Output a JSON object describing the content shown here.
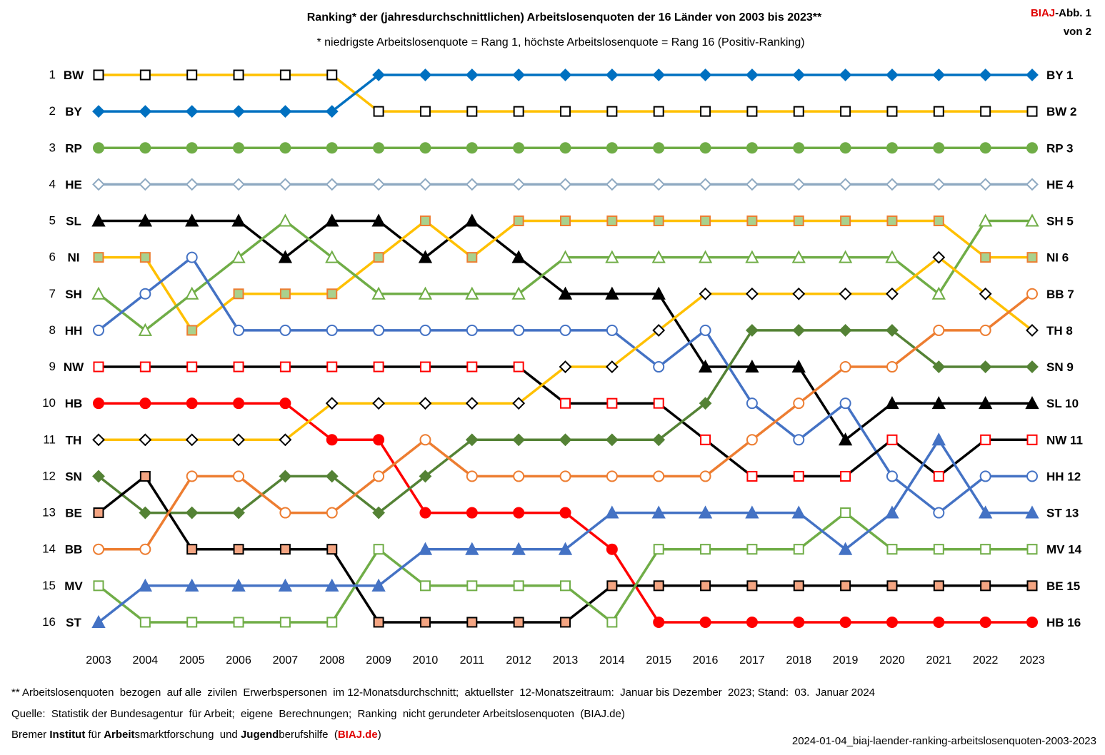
{
  "header": {
    "title": "Ranking* der (jahresdurchschnittlichen) Arbeitslosenquoten der 16 Länder von 2003 bis 2023**",
    "subtitle": "* niedrigste Arbeitslosenquote = Rang 1, höchste Arbeitslosenquote = Rang 16 (Positiv-Ranking)",
    "badge_brand": "BIAJ",
    "badge_rest": "-Abb. 1",
    "badge_line2": "von 2"
  },
  "footer": {
    "note": "** Arbeitslosenquoten  bezogen  auf alle  zivilen  Erwerbspersonen  im 12-Monatsdurchschnitt;  aktuellster  12-Monatszeitraum:  Januar bis Dezember  2023; Stand:  03.  Januar 2024",
    "source": "Quelle:  Statistik der Bundesagentur  für Arbeit;  eigene  Berechnungen;  Ranking  nicht gerundeter Arbeitslosenquoten  (BIAJ.de)",
    "org_parts": [
      "Bremer ",
      "Institut",
      " für ",
      "Arbeit",
      "smarktforschung  und ",
      "Jugend",
      "berufshilfe  ("
    ],
    "org_link": "BIAJ.de",
    "org_close": ")",
    "filename": "2024-01-04_biaj-laender-ranking-arbeitslosenquoten-2003-2023"
  },
  "chart_data": {
    "type": "line",
    "x": [
      2003,
      2004,
      2005,
      2006,
      2007,
      2008,
      2009,
      2010,
      2011,
      2012,
      2013,
      2014,
      2015,
      2016,
      2017,
      2018,
      2019,
      2020,
      2021,
      2022,
      2023
    ],
    "ylim": [
      1,
      16
    ],
    "y_inverted": true,
    "grid": false,
    "legend": "row labels on left and right",
    "series": [
      {
        "name": "BW",
        "color": "#FFC000",
        "marker": "square",
        "marker_fill": "#ffffff",
        "marker_stroke": "#000000",
        "values": [
          1,
          1,
          1,
          1,
          1,
          1,
          2,
          2,
          2,
          2,
          2,
          2,
          2,
          2,
          2,
          2,
          2,
          2,
          2,
          2,
          2
        ]
      },
      {
        "name": "BY",
        "color": "#0070C0",
        "marker": "diamond",
        "marker_fill": "#0070C0",
        "marker_stroke": "#0070C0",
        "values": [
          2,
          2,
          2,
          2,
          2,
          2,
          1,
          1,
          1,
          1,
          1,
          1,
          1,
          1,
          1,
          1,
          1,
          1,
          1,
          1,
          1
        ]
      },
      {
        "name": "RP",
        "color": "#70AD47",
        "marker": "circle",
        "marker_fill": "#70AD47",
        "marker_stroke": "#70AD47",
        "values": [
          3,
          3,
          3,
          3,
          3,
          3,
          3,
          3,
          3,
          3,
          3,
          3,
          3,
          3,
          3,
          3,
          3,
          3,
          3,
          3,
          3
        ]
      },
      {
        "name": "HE",
        "color": "#8EA9C1",
        "marker": "diamond",
        "marker_fill": "#ffffff",
        "marker_stroke": "#8EA9C1",
        "values": [
          4,
          4,
          4,
          4,
          4,
          4,
          4,
          4,
          4,
          4,
          4,
          4,
          4,
          4,
          4,
          4,
          4,
          4,
          4,
          4,
          4
        ]
      },
      {
        "name": "SL",
        "color": "#000000",
        "marker": "triangle",
        "marker_fill": "#000000",
        "marker_stroke": "#000000",
        "values": [
          5,
          5,
          5,
          5,
          6,
          5,
          5,
          6,
          5,
          6,
          7,
          7,
          7,
          9,
          9,
          9,
          11,
          10,
          10,
          10,
          10
        ]
      },
      {
        "name": "NI",
        "color": "#FFC000",
        "marker": "square",
        "marker_fill": "#A9D18E",
        "marker_stroke": "#ED7D31",
        "values": [
          6,
          6,
          8,
          7,
          7,
          7,
          6,
          5,
          6,
          5,
          5,
          5,
          5,
          5,
          5,
          5,
          5,
          5,
          5,
          6,
          6
        ]
      },
      {
        "name": "SH",
        "color": "#70AD47",
        "marker": "triangle",
        "marker_fill": "#ffffff",
        "marker_stroke": "#70AD47",
        "values": [
          7,
          8,
          7,
          6,
          5,
          6,
          7,
          7,
          7,
          7,
          6,
          6,
          6,
          6,
          6,
          6,
          6,
          6,
          7,
          5,
          5
        ]
      },
      {
        "name": "HH",
        "color": "#4472C4",
        "marker": "circle",
        "marker_fill": "#ffffff",
        "marker_stroke": "#4472C4",
        "values": [
          8,
          7,
          6,
          8,
          8,
          8,
          8,
          8,
          8,
          8,
          8,
          8,
          9,
          8,
          10,
          11,
          10,
          12,
          13,
          12,
          12
        ]
      },
      {
        "name": "NW",
        "color": "#000000",
        "marker": "square",
        "marker_fill": "#ffffff",
        "marker_stroke": "#FF0000",
        "values": [
          9,
          9,
          9,
          9,
          9,
          9,
          9,
          9,
          9,
          9,
          10,
          10,
          10,
          11,
          12,
          12,
          12,
          11,
          12,
          11,
          11
        ]
      },
      {
        "name": "HB",
        "color": "#FF0000",
        "marker": "circle",
        "marker_fill": "#FF0000",
        "marker_stroke": "#FF0000",
        "values": [
          10,
          10,
          10,
          10,
          10,
          11,
          11,
          13,
          13,
          13,
          13,
          14,
          16,
          16,
          16,
          16,
          16,
          16,
          16,
          16,
          16
        ]
      },
      {
        "name": "TH",
        "color": "#FFC000",
        "marker": "diamond",
        "marker_fill": "#ffffff",
        "marker_stroke": "#000000",
        "values": [
          11,
          11,
          11,
          11,
          11,
          10,
          10,
          10,
          10,
          10,
          9,
          9,
          8,
          7,
          7,
          7,
          7,
          7,
          6,
          7,
          8
        ]
      },
      {
        "name": "SN",
        "color": "#548235",
        "marker": "diamond",
        "marker_fill": "#548235",
        "marker_stroke": "#548235",
        "values": [
          12,
          13,
          13,
          13,
          12,
          12,
          13,
          12,
          11,
          11,
          11,
          11,
          11,
          10,
          8,
          8,
          8,
          8,
          9,
          9,
          9
        ]
      },
      {
        "name": "BE",
        "color": "#000000",
        "marker": "square",
        "marker_fill": "#F4A582",
        "marker_stroke": "#000000",
        "values": [
          13,
          12,
          14,
          14,
          14,
          14,
          16,
          16,
          16,
          16,
          16,
          15,
          15,
          15,
          15,
          15,
          15,
          15,
          15,
          15,
          15
        ]
      },
      {
        "name": "BB",
        "color": "#ED7D31",
        "marker": "circle",
        "marker_fill": "#ffffff",
        "marker_stroke": "#ED7D31",
        "values": [
          14,
          14,
          12,
          12,
          13,
          13,
          12,
          11,
          12,
          12,
          12,
          12,
          12,
          12,
          11,
          10,
          9,
          9,
          8,
          8,
          7
        ]
      },
      {
        "name": "MV",
        "color": "#70AD47",
        "marker": "square",
        "marker_fill": "#ffffff",
        "marker_stroke": "#70AD47",
        "values": [
          15,
          16,
          16,
          16,
          16,
          16,
          14,
          15,
          15,
          15,
          15,
          16,
          14,
          14,
          14,
          14,
          13,
          14,
          14,
          14,
          14
        ]
      },
      {
        "name": "ST",
        "color": "#4472C4",
        "marker": "triangle",
        "marker_fill": "#4472C4",
        "marker_stroke": "#4472C4",
        "values": [
          16,
          15,
          15,
          15,
          15,
          15,
          15,
          14,
          14,
          14,
          14,
          13,
          13,
          13,
          13,
          13,
          14,
          13,
          11,
          13,
          13
        ]
      }
    ]
  }
}
